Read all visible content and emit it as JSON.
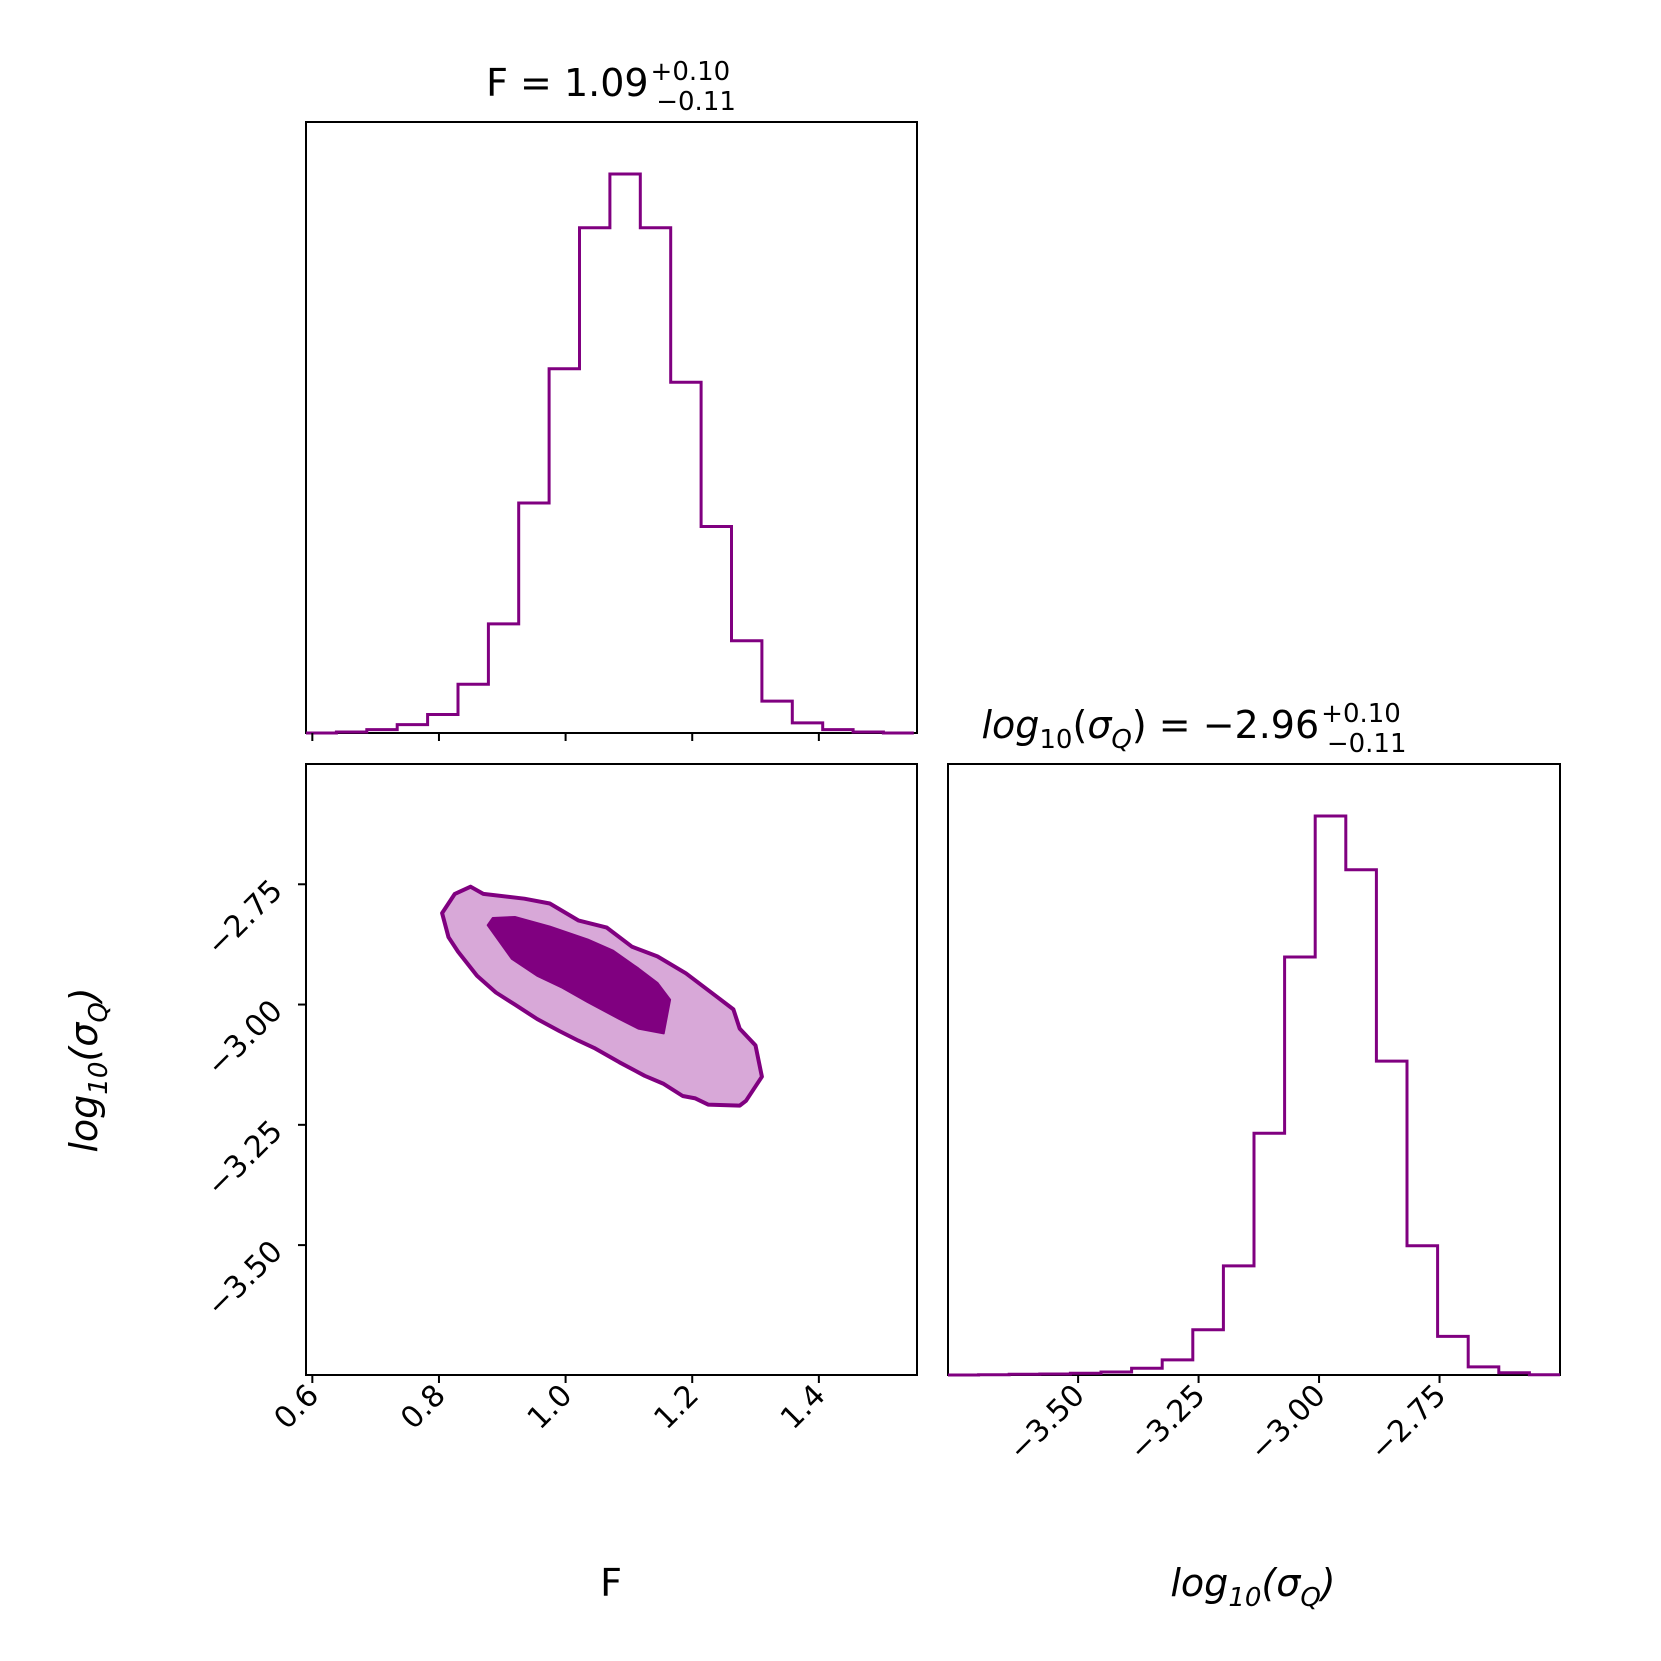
{
  "colors": {
    "series": "#800080",
    "contour_inner": "#800080",
    "contour_outer": "#d8a8d8",
    "axes": "#000000",
    "background": "#ffffff"
  },
  "chart_data": [
    {
      "id": "hist-F",
      "type": "bar",
      "panel": "top-left",
      "title": {
        "name": "F",
        "eq": " = ",
        "value": "1.09",
        "plus": "+0.10",
        "minus": "−0.11"
      },
      "xlabel": "",
      "ylabel": "",
      "xlim": [
        0.59,
        1.555
      ],
      "ylim": [
        0,
        0.182
      ],
      "bin_edges": [
        0.59,
        0.638,
        0.686,
        0.734,
        0.782,
        0.83,
        0.878,
        0.926,
        0.974,
        1.022,
        1.07,
        1.118,
        1.166,
        1.214,
        1.262,
        1.31,
        1.358,
        1.406,
        1.454,
        1.502,
        1.55
      ],
      "values": [
        0.0,
        0.0003,
        0.001,
        0.0025,
        0.0055,
        0.0145,
        0.0325,
        0.0685,
        0.1085,
        0.1505,
        0.1665,
        0.1505,
        0.1045,
        0.0615,
        0.0275,
        0.0095,
        0.003,
        0.001,
        0.0003,
        0.0
      ],
      "xticks": [
        0.6,
        0.8,
        1.0,
        1.2,
        1.4
      ],
      "xtick_labels": [],
      "yticks": []
    },
    {
      "id": "contour-F-sigma",
      "type": "contour",
      "panel": "bottom-left",
      "xlabel": "F",
      "ylabel": {
        "base": "log",
        "sub": "10",
        "open": "(",
        "sym": "σ",
        "symsub": "Q",
        "close": ")"
      },
      "xlim": [
        0.59,
        1.555
      ],
      "ylim": [
        -3.77,
        -2.5
      ],
      "xticks": [
        0.6,
        0.8,
        1.0,
        1.2,
        1.4
      ],
      "xtick_labels": [
        "0.6",
        "0.8",
        "1.0",
        "1.2",
        "1.4"
      ],
      "yticks": [
        -2.75,
        -3.0,
        -3.25,
        -3.5
      ],
      "ytick_labels": [
        "−2.75",
        "−3.00",
        "−3.25",
        "−3.50"
      ],
      "levels": [
        {
          "name": "95% region",
          "points": [
            [
              0.825,
              -2.77
            ],
            [
              0.85,
              -2.755
            ],
            [
              0.87,
              -2.77
            ],
            [
              0.935,
              -2.78
            ],
            [
              0.975,
              -2.79
            ],
            [
              1.02,
              -2.825
            ],
            [
              1.065,
              -2.84
            ],
            [
              1.105,
              -2.88
            ],
            [
              1.145,
              -2.9
            ],
            [
              1.19,
              -2.935
            ],
            [
              1.24,
              -2.985
            ],
            [
              1.265,
              -3.01
            ],
            [
              1.275,
              -3.05
            ],
            [
              1.3,
              -3.085
            ],
            [
              1.31,
              -3.15
            ],
            [
              1.285,
              -3.2
            ],
            [
              1.275,
              -3.21
            ],
            [
              1.225,
              -3.208
            ],
            [
              1.205,
              -3.195
            ],
            [
              1.185,
              -3.19
            ],
            [
              1.155,
              -3.165
            ],
            [
              1.125,
              -3.148
            ],
            [
              1.085,
              -3.12
            ],
            [
              1.045,
              -3.09
            ],
            [
              1.02,
              -3.075
            ],
            [
              0.99,
              -3.055
            ],
            [
              0.955,
              -3.03
            ],
            [
              0.92,
              -3.0
            ],
            [
              0.89,
              -2.975
            ],
            [
              0.86,
              -2.94
            ],
            [
              0.83,
              -2.89
            ],
            [
              0.815,
              -2.86
            ],
            [
              0.805,
              -2.81
            ]
          ]
        },
        {
          "name": "68% region",
          "points": [
            [
              0.877,
              -2.835
            ],
            [
              0.885,
              -2.82
            ],
            [
              0.92,
              -2.818
            ],
            [
              0.975,
              -2.838
            ],
            [
              1.035,
              -2.865
            ],
            [
              1.075,
              -2.888
            ],
            [
              1.115,
              -2.925
            ],
            [
              1.145,
              -2.955
            ],
            [
              1.165,
              -2.99
            ],
            [
              1.155,
              -3.06
            ],
            [
              1.115,
              -3.05
            ],
            [
              1.085,
              -3.03
            ],
            [
              1.035,
              -2.995
            ],
            [
              0.995,
              -2.965
            ],
            [
              0.955,
              -2.94
            ],
            [
              0.915,
              -2.905
            ]
          ]
        }
      ]
    },
    {
      "id": "hist-sigma",
      "type": "bar",
      "panel": "bottom-right",
      "title": {
        "base": "log",
        "sub": "10",
        "open": "(",
        "sym": "σ",
        "symsub": "Q",
        "close": ")",
        "eq": " = ",
        "value": "−2.96",
        "plus": "+0.10",
        "minus": "−0.11"
      },
      "xlabel": {
        "base": "log",
        "sub": "10",
        "open": "(",
        "sym": "σ",
        "symsub": "Q",
        "close": ")"
      },
      "ylabel": "",
      "xlim": [
        -3.77,
        -2.5
      ],
      "ylim": [
        0,
        0.182
      ],
      "bin_edges": [
        -3.77,
        -3.7065,
        -3.643,
        -3.5795,
        -3.516,
        -3.4525,
        -3.389,
        -3.3255,
        -3.262,
        -3.1985,
        -3.135,
        -3.0715,
        -3.008,
        -2.9445,
        -2.881,
        -2.8175,
        -2.754,
        -2.6905,
        -2.627,
        -2.5635,
        -2.5
      ],
      "values": [
        0.0,
        0.0001,
        0.0002,
        0.0003,
        0.0005,
        0.0009,
        0.002,
        0.0045,
        0.0135,
        0.0325,
        0.072,
        0.1245,
        0.1665,
        0.1505,
        0.0935,
        0.0385,
        0.0115,
        0.0024,
        0.0007,
        0.0001
      ],
      "xticks": [
        -3.5,
        -3.25,
        -3.0,
        -2.75
      ],
      "xtick_labels": [
        "−3.50",
        "−3.25",
        "−3.00",
        "−2.75"
      ],
      "yticks": []
    }
  ]
}
